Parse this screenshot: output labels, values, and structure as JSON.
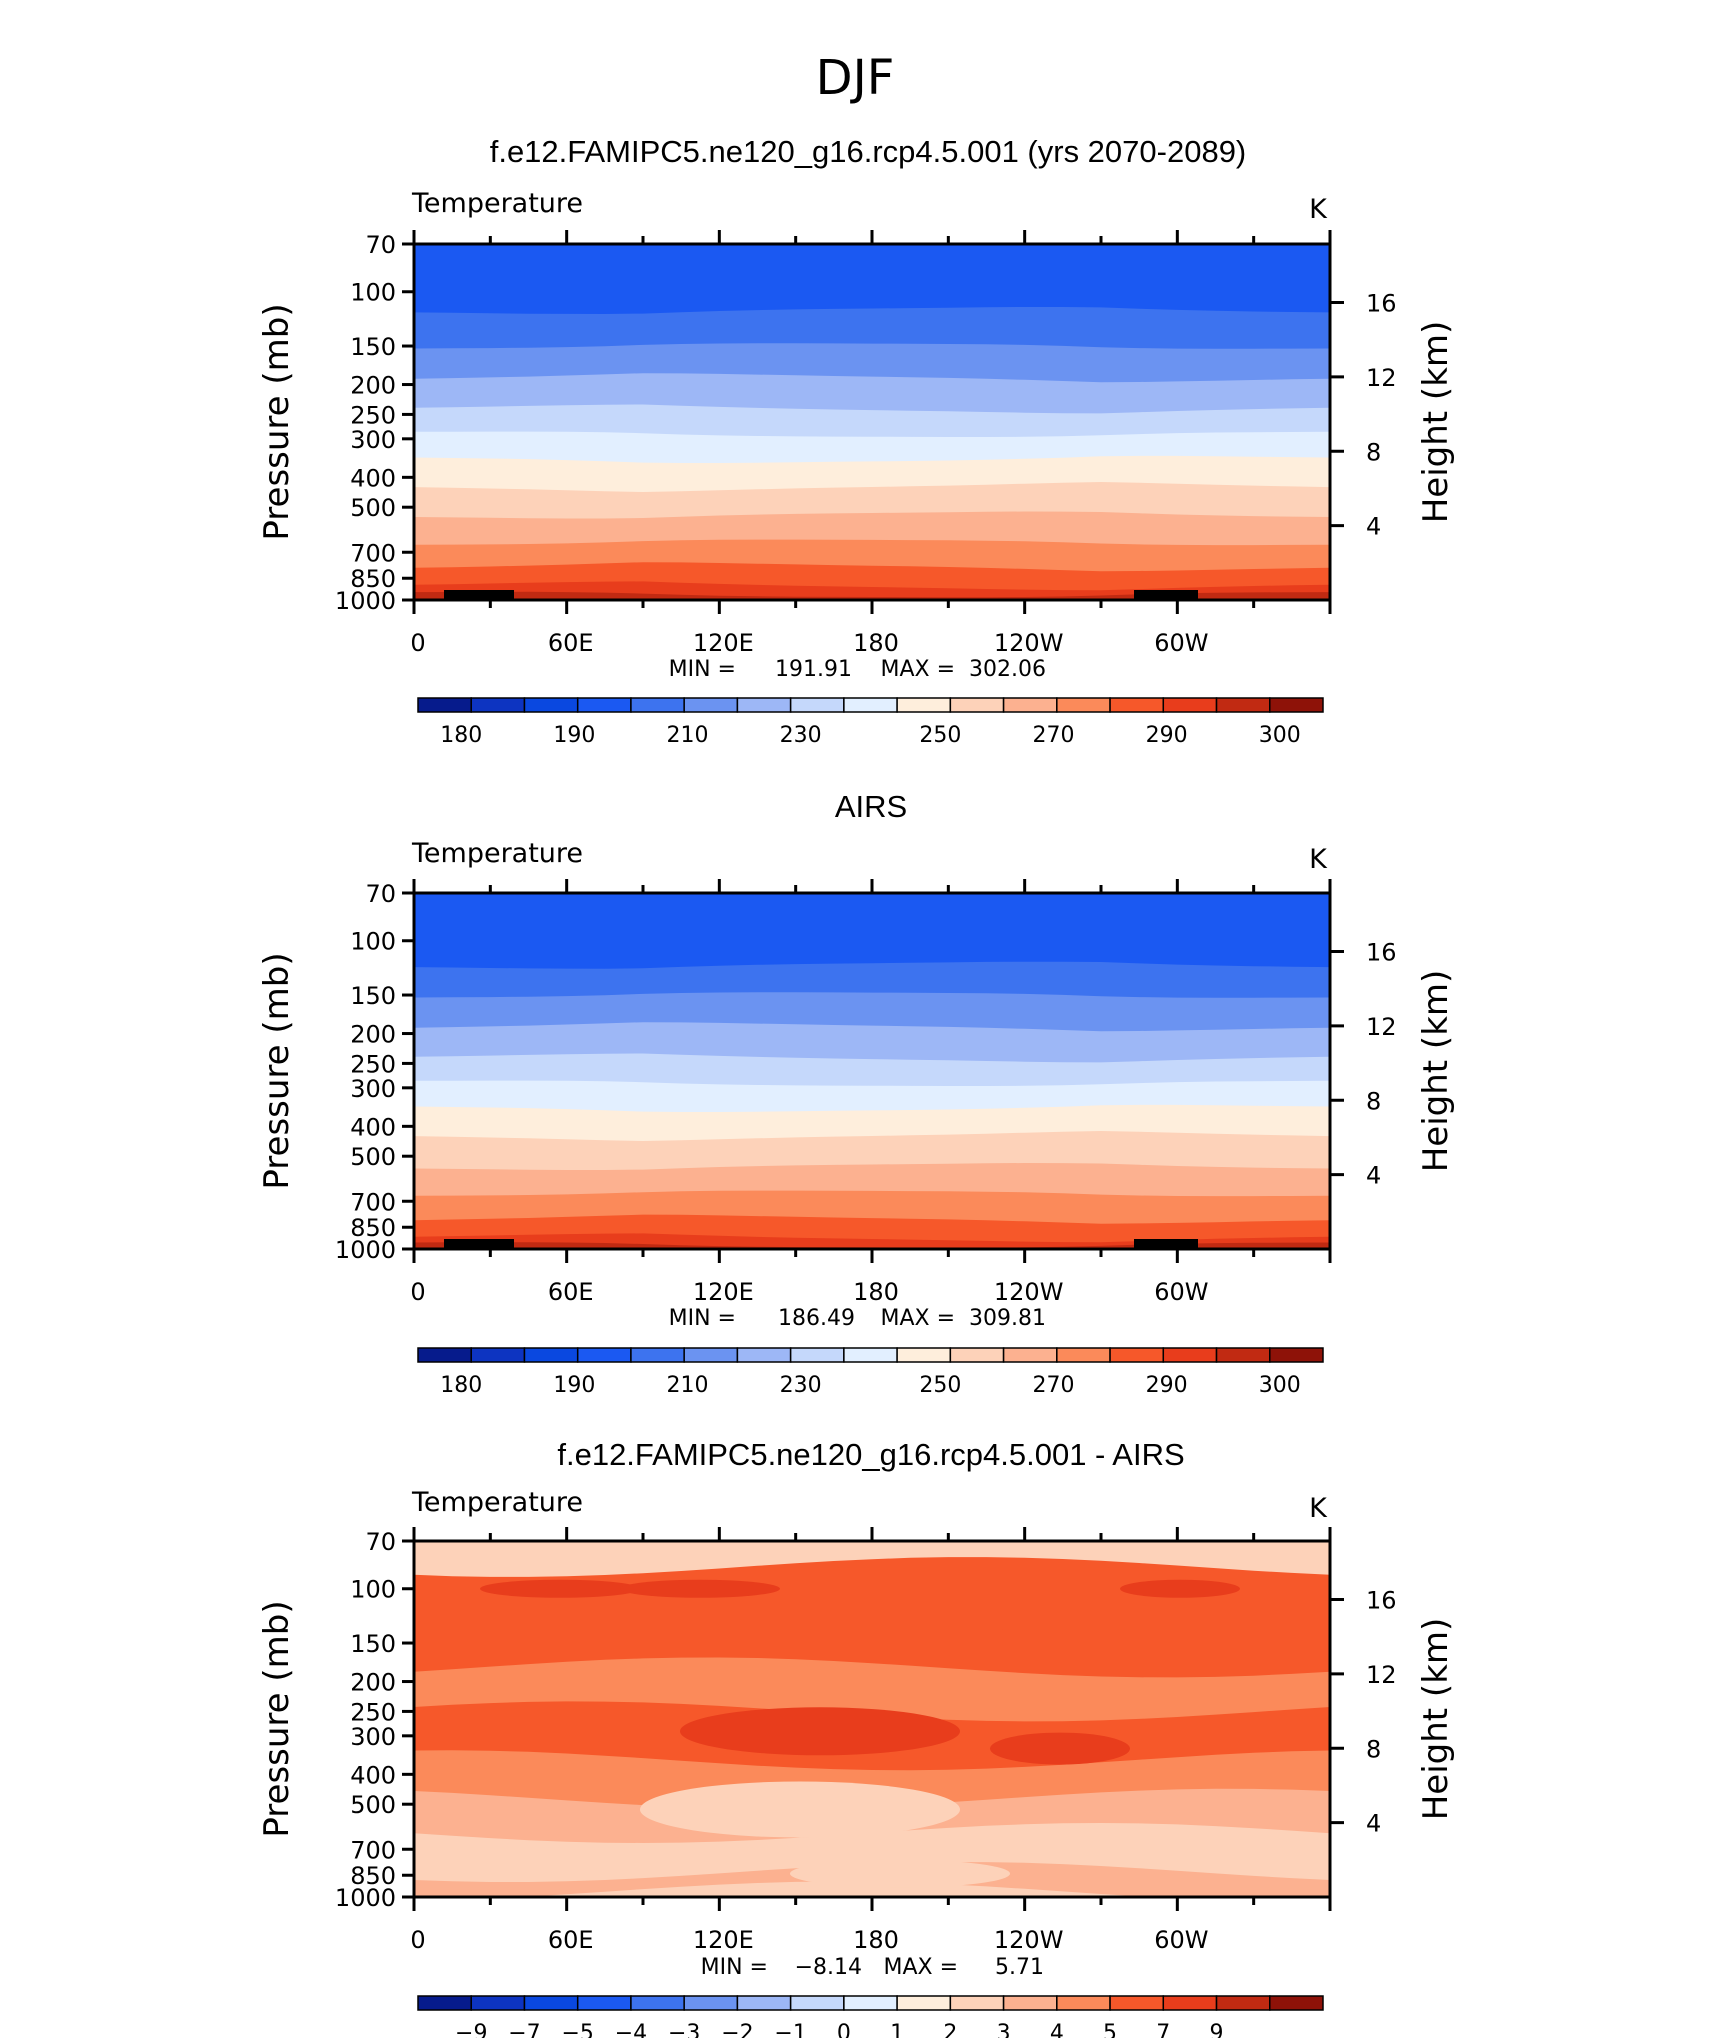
{
  "figure": {
    "season": "DJF"
  },
  "chart_data": [
    {
      "type": "heatmap",
      "title": "f.e12.FAMIPC5.ne120_g16.rcp4.5.001 (yrs 2070-2089)",
      "left_label": "Temperature",
      "units": "K",
      "xlabel": "",
      "ylabel": "Pressure (mb)",
      "ylabel_right": "Height (km)",
      "x_ticks": [
        "0",
        "60E",
        "120E",
        "180",
        "120W",
        "60W"
      ],
      "y_ticks": [
        "70",
        "100",
        "150",
        "200",
        "250",
        "300",
        "400",
        "500",
        "700",
        "850",
        "1000"
      ],
      "y_ticks_right": [
        "16",
        "12",
        "8",
        "4"
      ],
      "stats": {
        "min_label": "MIN =",
        "min": "191.91",
        "max_label": "MAX =",
        "max": "302.06"
      },
      "levels": [
        "175",
        "180",
        "185",
        "190",
        "200",
        "210",
        "220",
        "230",
        "240",
        "250",
        "260",
        "270",
        "280",
        "290",
        "295",
        "300",
        "305"
      ],
      "colorbar_labels": [
        "180",
        "190",
        "210",
        "230",
        "250",
        "270",
        "290",
        "300"
      ],
      "colors": [
        "#061b8c",
        "#0d34c1",
        "#0a48e0",
        "#1b59f2",
        "#3d73ef",
        "#6b93f1",
        "#9db7f6",
        "#c5d8fb",
        "#e2efff",
        "#feeedc",
        "#fdd2b9",
        "#fcb190",
        "#fb8a5a",
        "#f6582a",
        "#e83d1c",
        "#c12a12",
        "#8e1208"
      ],
      "bands": [
        {
          "p": 70,
          "v": 195
        },
        {
          "p": 115,
          "v": 205
        },
        {
          "p": 150,
          "v": 215
        },
        {
          "p": 190,
          "v": 225
        },
        {
          "p": 240,
          "v": 235
        },
        {
          "p": 290,
          "v": 245
        },
        {
          "p": 350,
          "v": 255
        },
        {
          "p": 430,
          "v": 265
        },
        {
          "p": 530,
          "v": 275
        },
        {
          "p": 650,
          "v": 285
        },
        {
          "p": 780,
          "v": 292
        },
        {
          "p": 900,
          "v": 297
        },
        {
          "p": 960,
          "v": 302
        }
      ]
    },
    {
      "type": "heatmap",
      "title": "AIRS",
      "left_label": "Temperature",
      "units": "K",
      "xlabel": "",
      "ylabel": "Pressure (mb)",
      "ylabel_right": "Height (km)",
      "x_ticks": [
        "0",
        "60E",
        "120E",
        "180",
        "120W",
        "60W"
      ],
      "y_ticks": [
        "70",
        "100",
        "150",
        "200",
        "250",
        "300",
        "400",
        "500",
        "700",
        "850",
        "1000"
      ],
      "y_ticks_right": [
        "16",
        "12",
        "8",
        "4"
      ],
      "stats": {
        "min_label": "MIN =",
        "min": "186.49",
        "max_label": "MAX =",
        "max": "309.81"
      },
      "levels": [
        "175",
        "180",
        "185",
        "190",
        "200",
        "210",
        "220",
        "230",
        "240",
        "250",
        "260",
        "270",
        "280",
        "290",
        "295",
        "300",
        "305"
      ],
      "colorbar_labels": [
        "180",
        "190",
        "210",
        "230",
        "250",
        "270",
        "290",
        "300"
      ],
      "colors": [
        "#061b8c",
        "#0d34c1",
        "#0a48e0",
        "#1b59f2",
        "#3d73ef",
        "#6b93f1",
        "#9db7f6",
        "#c5d8fb",
        "#e2efff",
        "#feeedc",
        "#fdd2b9",
        "#fcb190",
        "#fb8a5a",
        "#f6582a",
        "#e83d1c",
        "#c12a12",
        "#8e1208"
      ],
      "bands": [
        {
          "p": 70,
          "v": 195
        },
        {
          "p": 120,
          "v": 205
        },
        {
          "p": 150,
          "v": 215
        },
        {
          "p": 190,
          "v": 225
        },
        {
          "p": 240,
          "v": 235
        },
        {
          "p": 290,
          "v": 245
        },
        {
          "p": 350,
          "v": 255
        },
        {
          "p": 430,
          "v": 265
        },
        {
          "p": 540,
          "v": 275
        },
        {
          "p": 660,
          "v": 285
        },
        {
          "p": 800,
          "v": 292
        },
        {
          "p": 920,
          "v": 297
        },
        {
          "p": 970,
          "v": 302
        }
      ]
    },
    {
      "type": "heatmap",
      "title": "f.e12.FAMIPC5.ne120_g16.rcp4.5.001 - AIRS",
      "left_label": "Temperature",
      "units": "K",
      "xlabel": "",
      "ylabel": "Pressure (mb)",
      "ylabel_right": "Height (km)",
      "x_ticks": [
        "0",
        "60E",
        "120E",
        "180",
        "120W",
        "60W"
      ],
      "y_ticks": [
        "70",
        "100",
        "150",
        "200",
        "250",
        "300",
        "400",
        "500",
        "700",
        "850",
        "1000"
      ],
      "y_ticks_right": [
        "16",
        "12",
        "8",
        "4"
      ],
      "stats": {
        "min_label": "MIN =",
        "min": "−8.14",
        "max_label": "MAX =",
        "max": "5.71"
      },
      "levels": [
        "-10",
        "-9",
        "-8",
        "-7",
        "-6",
        "-5",
        "-4",
        "-3",
        "-2",
        "-1",
        "0",
        "1",
        "2",
        "3",
        "4",
        "5",
        "7",
        "9"
      ],
      "colorbar_labels": [
        "−9",
        "−7",
        "−5",
        "−4",
        "−3",
        "−2",
        "−1",
        "0",
        "1",
        "2",
        "3",
        "4",
        "5",
        "7",
        "9"
      ],
      "colors": [
        "#061b8c",
        "#0d34c1",
        "#0a48e0",
        "#1b59f2",
        "#3d73ef",
        "#6b93f1",
        "#9db7f6",
        "#c5d8fb",
        "#e2efff",
        "#feeedc",
        "#fdd2b9",
        "#fcb190",
        "#fb8a5a",
        "#f6582a",
        "#e83d1c",
        "#c12a12",
        "#8e1208"
      ],
      "bands": [
        {
          "p": 70,
          "v": 0.5
        },
        {
          "p": 85,
          "v": 3.5
        },
        {
          "p": 140,
          "v": 3.0
        },
        {
          "p": 180,
          "v": 2.5
        },
        {
          "p": 250,
          "v": 3.5
        },
        {
          "p": 360,
          "v": 2.5
        },
        {
          "p": 480,
          "v": 1.5
        },
        {
          "p": 620,
          "v": 0.5
        },
        {
          "p": 830,
          "v": 1.5
        },
        {
          "p": 960,
          "v": 0.5
        }
      ]
    }
  ]
}
